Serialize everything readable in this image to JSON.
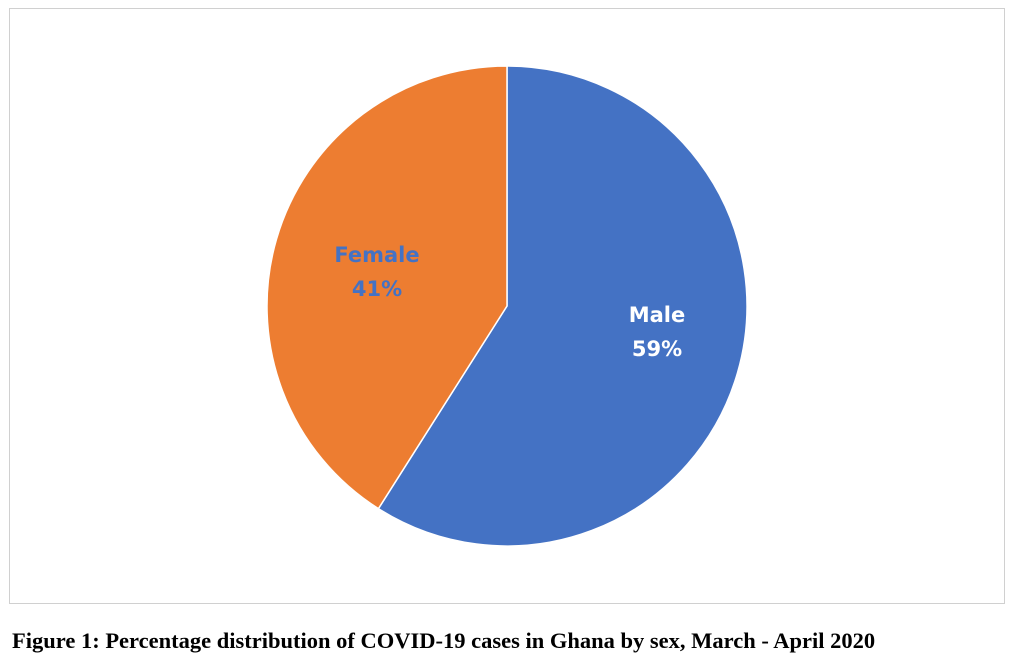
{
  "chart_data": {
    "type": "pie",
    "categories": [
      "Male",
      "Female"
    ],
    "values": [
      59,
      41
    ],
    "value_labels": [
      "59%",
      "41%"
    ],
    "colors": [
      "#4472C4",
      "#ED7D31"
    ],
    "label_colors": [
      "#FFFFFF",
      "#4472C4"
    ],
    "legend": "none",
    "start_angle_deg": 0,
    "direction": "clockwise"
  },
  "caption": "Figure 1: Percentage distribution of COVID-19 cases in Ghana by sex, March - April 2020"
}
